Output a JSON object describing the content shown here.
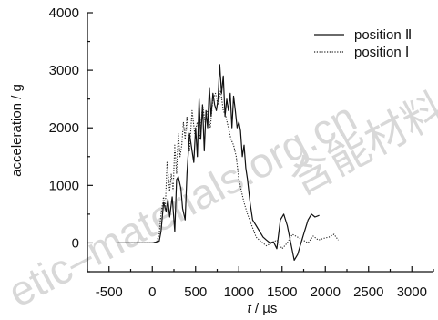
{
  "chart_data": {
    "type": "line",
    "xlabel_var": "t",
    "xlabel_unit": " / µs",
    "ylabel": "acceleration / g",
    "xlim": [
      -750,
      3250
    ],
    "ylim": [
      -500,
      4000
    ],
    "xticks": [
      -500,
      0,
      500,
      1000,
      1500,
      2000,
      2500,
      3000
    ],
    "yticks": [
      0,
      1000,
      2000,
      3000,
      4000
    ],
    "legend_position": "top-right",
    "grid": false,
    "series": [
      {
        "name": "position Ⅱ",
        "style": "solid",
        "color": "#111111",
        "x": [
          -400,
          -200,
          0,
          80,
          100,
          130,
          160,
          180,
          200,
          230,
          260,
          280,
          300,
          330,
          350,
          380,
          400,
          430,
          460,
          480,
          500,
          520,
          540,
          560,
          580,
          600,
          620,
          640,
          660,
          680,
          700,
          720,
          740,
          760,
          780,
          800,
          820,
          840,
          860,
          880,
          900,
          920,
          940,
          960,
          980,
          1000,
          1020,
          1040,
          1060,
          1080,
          1100,
          1130,
          1160,
          1200,
          1240,
          1280,
          1320,
          1360,
          1400,
          1440,
          1480,
          1520,
          1560,
          1600,
          1640,
          1680,
          1720,
          1760,
          1800,
          1840,
          1880,
          1930
        ],
        "y": [
          0,
          0,
          0,
          30,
          200,
          700,
          550,
          760,
          450,
          800,
          200,
          1100,
          1150,
          950,
          600,
          400,
          1200,
          1900,
          1600,
          1400,
          2000,
          1500,
          2500,
          1800,
          2400,
          1600,
          2300,
          2000,
          2700,
          2200,
          2600,
          2400,
          2300,
          2500,
          3100,
          2600,
          2900,
          2200,
          2500,
          2300,
          2600,
          2000,
          2550,
          2300,
          2000,
          2100,
          1950,
          1500,
          1700,
          1300,
          1100,
          700,
          400,
          300,
          200,
          100,
          50,
          0,
          20,
          -100,
          400,
          500,
          300,
          0,
          -300,
          -200,
          0,
          200,
          400,
          500,
          450,
          480
        ]
      },
      {
        "name": "position Ⅰ",
        "style": "dotted",
        "color": "#222222",
        "x": [
          -300,
          -100,
          0,
          50,
          80,
          100,
          130,
          150,
          170,
          200,
          220,
          240,
          260,
          280,
          300,
          320,
          340,
          360,
          380,
          400,
          430,
          460,
          490,
          520,
          550,
          580,
          610,
          640,
          670,
          700,
          730,
          760,
          790,
          820,
          850,
          880,
          910,
          940,
          970,
          1000,
          1030,
          1060,
          1100,
          1150,
          1200,
          1260,
          1320,
          1380,
          1440,
          1500,
          1560,
          1620,
          1680,
          1740,
          1800,
          1860,
          1920,
          1980,
          2040,
          2100,
          2150
        ],
        "y": [
          0,
          0,
          0,
          20,
          150,
          500,
          800,
          600,
          1400,
          900,
          1200,
          900,
          1700,
          1200,
          1900,
          1500,
          1700,
          2100,
          1800,
          2200,
          1600,
          2300,
          1900,
          2100,
          1800,
          2400,
          2100,
          2300,
          2000,
          2500,
          2600,
          2400,
          2650,
          2300,
          2200,
          2000,
          1800,
          1700,
          1500,
          1100,
          900,
          700,
          500,
          300,
          100,
          20,
          -50,
          0,
          50,
          -100,
          0,
          150,
          100,
          50,
          0,
          120,
          50,
          80,
          100,
          150,
          50
        ]
      }
    ]
  },
  "watermark": {
    "latin": "etic–materials.org.cn",
    "cjk": "含能材料"
  }
}
